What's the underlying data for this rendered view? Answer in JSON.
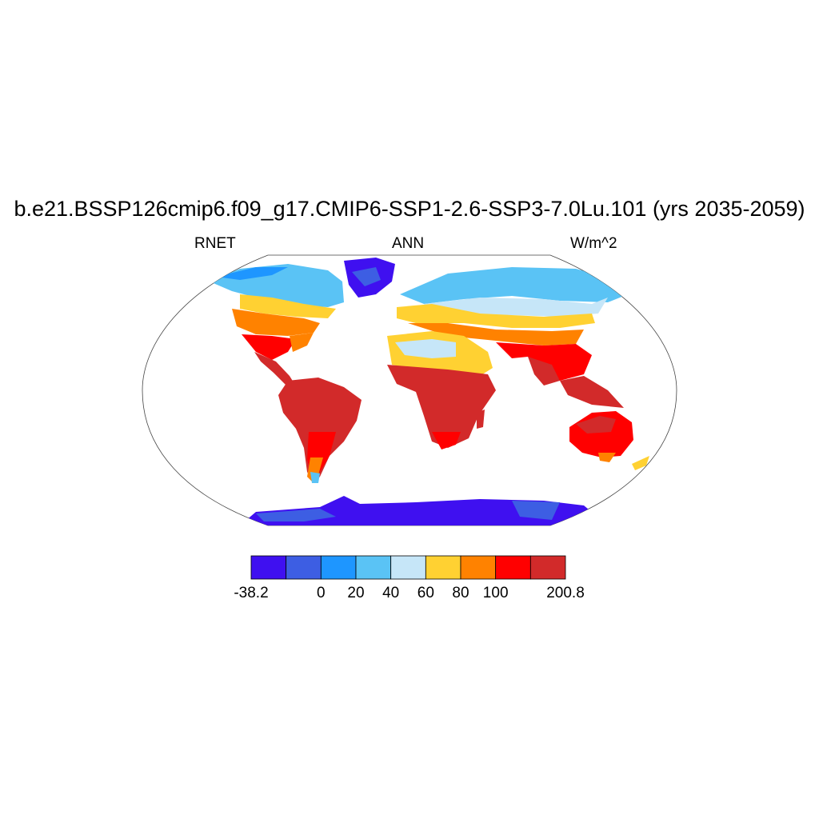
{
  "title": "b.e21.BSSP126cmip6.f09_g17.CMIP6-SSP1-2.6-SSP3-7.0Lu.101 (yrs 2035-2059)",
  "subtitle_left": "RNET",
  "subtitle_center": "ANN",
  "subtitle_right": "W/m^2",
  "map": {
    "projection": "robinson",
    "background": "#ffffff",
    "coastline_color": "#000000"
  },
  "colorbar": {
    "colors": [
      "#3f10f0",
      "#3d5ee3",
      "#1e96ff",
      "#5ac3f5",
      "#c6e6f8",
      "#ffd132",
      "#ff8200",
      "#ff0000",
      "#d22a2a"
    ],
    "labels": [
      {
        "text": "-38.2",
        "boundary": 0
      },
      {
        "text": "0",
        "boundary": 2
      },
      {
        "text": "20",
        "boundary": 3
      },
      {
        "text": "40",
        "boundary": 4
      },
      {
        "text": "60",
        "boundary": 5
      },
      {
        "text": "80",
        "boundary": 6
      },
      {
        "text": "100",
        "boundary": 7
      },
      {
        "text": "200.8",
        "boundary": 9
      }
    ]
  }
}
